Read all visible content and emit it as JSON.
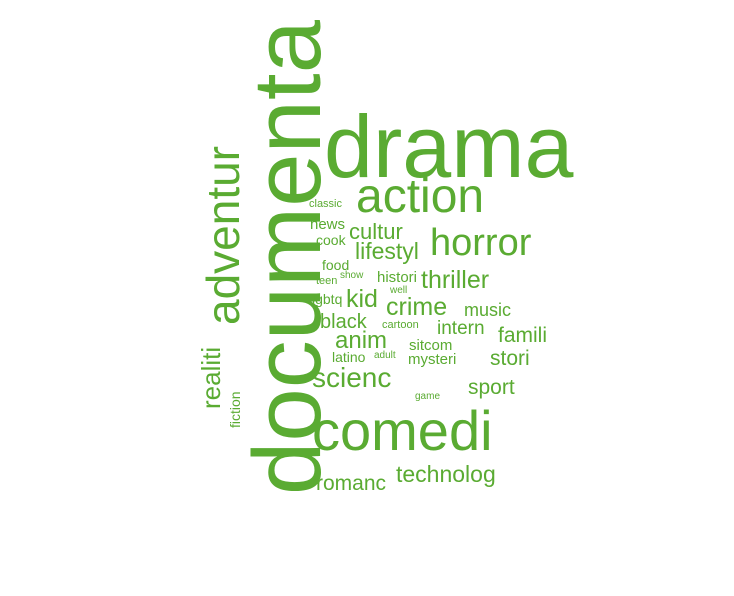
{
  "word_cloud": {
    "color": "#5aab32",
    "words": [
      {
        "text": "drama",
        "orientation": "horizontal"
      },
      {
        "text": "documenta",
        "orientation": "vertical"
      },
      {
        "text": "comedi",
        "orientation": "horizontal"
      },
      {
        "text": "action",
        "orientation": "horizontal"
      },
      {
        "text": "adventur",
        "orientation": "vertical"
      },
      {
        "text": "horror",
        "orientation": "horizontal"
      },
      {
        "text": "scienc",
        "orientation": "horizontal"
      },
      {
        "text": "realiti",
        "orientation": "vertical"
      },
      {
        "text": "lifestyl",
        "orientation": "horizontal"
      },
      {
        "text": "cultur",
        "orientation": "horizontal"
      },
      {
        "text": "thriller",
        "orientation": "horizontal"
      },
      {
        "text": "crime",
        "orientation": "horizontal"
      },
      {
        "text": "kid",
        "orientation": "horizontal"
      },
      {
        "text": "anim",
        "orientation": "horizontal"
      },
      {
        "text": "technolog",
        "orientation": "horizontal"
      },
      {
        "text": "romanc",
        "orientation": "horizontal"
      },
      {
        "text": "intern",
        "orientation": "horizontal"
      },
      {
        "text": "famili",
        "orientation": "horizontal"
      },
      {
        "text": "stori",
        "orientation": "horizontal"
      },
      {
        "text": "sport",
        "orientation": "horizontal"
      },
      {
        "text": "black",
        "orientation": "horizontal"
      },
      {
        "text": "music",
        "orientation": "horizontal"
      },
      {
        "text": "mysteri",
        "orientation": "horizontal"
      },
      {
        "text": "sitcom",
        "orientation": "horizontal"
      },
      {
        "text": "histori",
        "orientation": "horizontal"
      },
      {
        "text": "news",
        "orientation": "horizontal"
      },
      {
        "text": "cook",
        "orientation": "horizontal"
      },
      {
        "text": "food",
        "orientation": "horizontal"
      },
      {
        "text": "latino",
        "orientation": "horizontal"
      },
      {
        "text": "lgbtq",
        "orientation": "horizontal"
      },
      {
        "text": "fiction",
        "orientation": "vertical"
      },
      {
        "text": "classic",
        "orientation": "horizontal"
      },
      {
        "text": "teen",
        "orientation": "horizontal"
      },
      {
        "text": "show",
        "orientation": "horizontal"
      },
      {
        "text": "well",
        "orientation": "horizontal"
      },
      {
        "text": "cartoon",
        "orientation": "horizontal"
      },
      {
        "text": "adult",
        "orientation": "horizontal"
      },
      {
        "text": "game",
        "orientation": "horizontal"
      }
    ]
  }
}
